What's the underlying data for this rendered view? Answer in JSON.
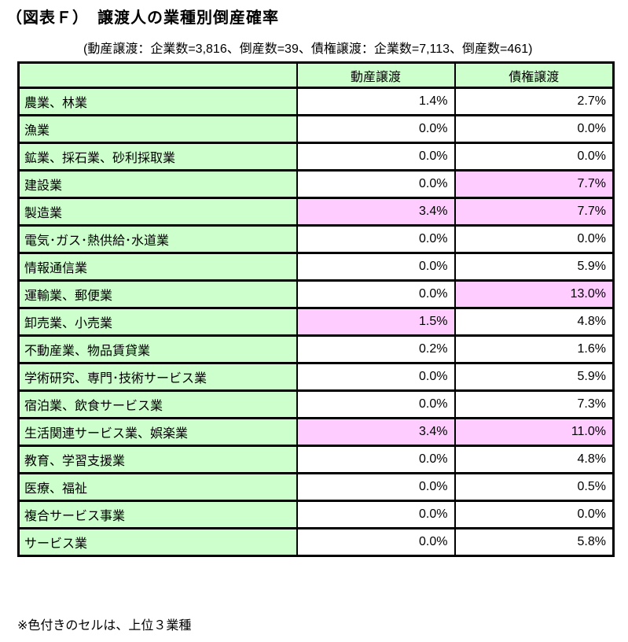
{
  "title": "（図表Ｆ）　譲渡人の業種別倒産確率",
  "subtitle": "(動産譲渡：企業数=3,816、倒産数=39、債権譲渡：企業数=7,113、倒産数=461)",
  "footnote": "※色付きのセルは、上位３業種",
  "colors": {
    "highlight_green": "#ccffcc",
    "highlight_pink": "#ffccff",
    "border": "#000000"
  },
  "table": {
    "headers": [
      "",
      "動産譲渡",
      "債権譲渡"
    ],
    "rows": [
      {
        "industry": "農業、林業",
        "chattel": "1.4%",
        "receivable": "2.7%",
        "chattel_highlight": false,
        "receivable_highlight": false
      },
      {
        "industry": "漁業",
        "chattel": "0.0%",
        "receivable": "0.0%",
        "chattel_highlight": false,
        "receivable_highlight": false
      },
      {
        "industry": "鉱業、採石業、砂利採取業",
        "chattel": "0.0%",
        "receivable": "0.0%",
        "chattel_highlight": false,
        "receivable_highlight": false
      },
      {
        "industry": "建設業",
        "chattel": "0.0%",
        "receivable": "7.7%",
        "chattel_highlight": false,
        "receivable_highlight": true
      },
      {
        "industry": "製造業",
        "chattel": "3.4%",
        "receivable": "7.7%",
        "chattel_highlight": true,
        "receivable_highlight": true
      },
      {
        "industry": "電気･ガス･熱供給･水道業",
        "chattel": "0.0%",
        "receivable": "0.0%",
        "chattel_highlight": false,
        "receivable_highlight": false
      },
      {
        "industry": "情報通信業",
        "chattel": "0.0%",
        "receivable": "5.9%",
        "chattel_highlight": false,
        "receivable_highlight": false
      },
      {
        "industry": "運輸業、郵便業",
        "chattel": "0.0%",
        "receivable": "13.0%",
        "chattel_highlight": false,
        "receivable_highlight": true
      },
      {
        "industry": "卸売業、小売業",
        "chattel": "1.5%",
        "receivable": "4.8%",
        "chattel_highlight": true,
        "receivable_highlight": false
      },
      {
        "industry": "不動産業、物品賃貸業",
        "chattel": "0.2%",
        "receivable": "1.6%",
        "chattel_highlight": false,
        "receivable_highlight": false
      },
      {
        "industry": "学術研究、専門･技術サービス業",
        "chattel": "0.0%",
        "receivable": "5.9%",
        "chattel_highlight": false,
        "receivable_highlight": false
      },
      {
        "industry": "宿泊業、飲食サービス業",
        "chattel": "0.0%",
        "receivable": "7.3%",
        "chattel_highlight": false,
        "receivable_highlight": false
      },
      {
        "industry": "生活関連サービス業、娯楽業",
        "chattel": "3.4%",
        "receivable": "11.0%",
        "chattel_highlight": true,
        "receivable_highlight": true
      },
      {
        "industry": "教育、学習支援業",
        "chattel": "0.0%",
        "receivable": "4.8%",
        "chattel_highlight": false,
        "receivable_highlight": false
      },
      {
        "industry": "医療、福祉",
        "chattel": "0.0%",
        "receivable": "0.5%",
        "chattel_highlight": false,
        "receivable_highlight": false
      },
      {
        "industry": "複合サービス事業",
        "chattel": "0.0%",
        "receivable": "0.0%",
        "chattel_highlight": false,
        "receivable_highlight": false
      },
      {
        "industry": "サービス業",
        "chattel": "0.0%",
        "receivable": "5.8%",
        "chattel_highlight": false,
        "receivable_highlight": false
      }
    ]
  }
}
